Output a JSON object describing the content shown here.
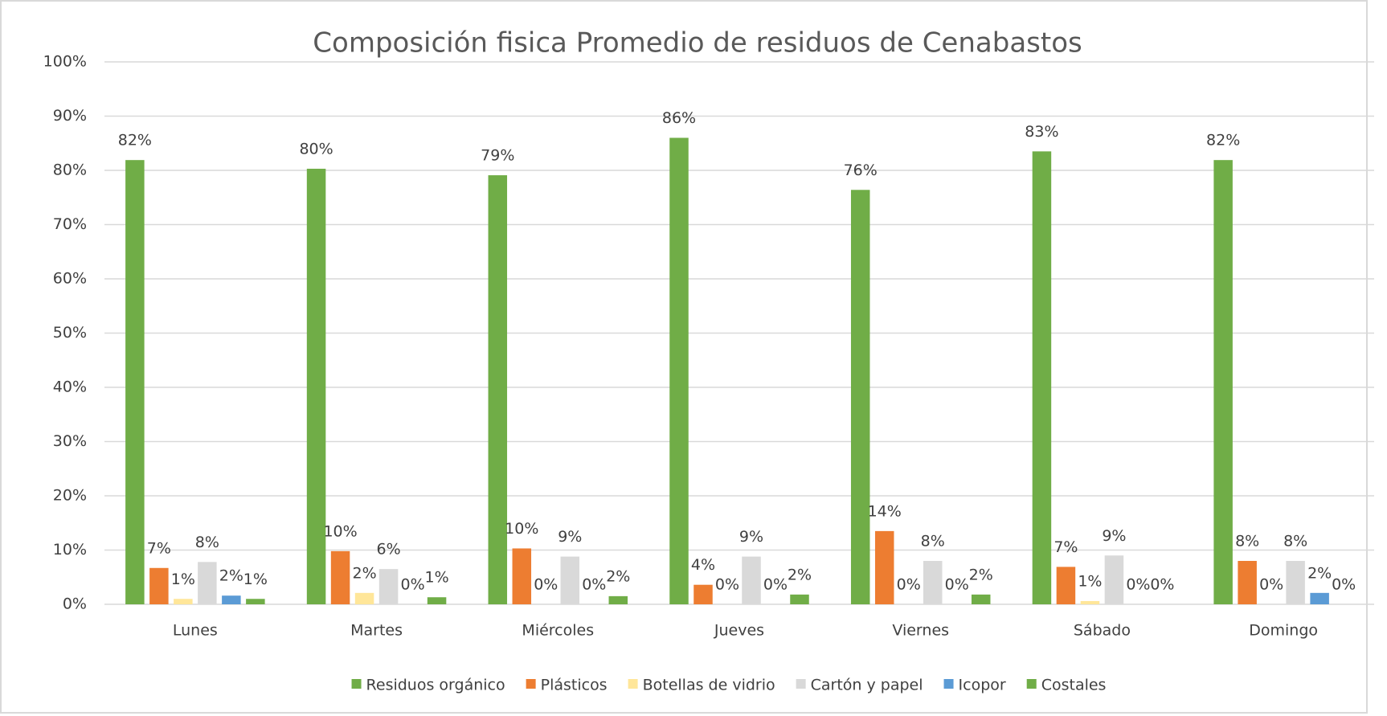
{
  "chart_data": {
    "type": "bar",
    "title": "Composición fisica Promedio de residuos de Cenabastos",
    "categories": [
      "Lunes",
      "Martes",
      "Miércoles",
      "Jueves",
      "Viernes",
      "Sábado",
      "Domingo"
    ],
    "series": [
      {
        "name": "Residuos orgánico",
        "color": "#70ad47",
        "values": [
          81.9,
          80.3,
          79.1,
          86,
          76.4,
          83.5,
          81.9
        ],
        "value_labels": [
          "82%",
          "80%",
          "79%",
          "86%",
          "76%",
          "83%",
          "82%"
        ]
      },
      {
        "name": "Plásticos",
        "color": "#ed7d31",
        "values": [
          6.7,
          9.8,
          10.3,
          3.6,
          13.5,
          6.9,
          8
        ],
        "value_labels": [
          "7%",
          "10%",
          "10%",
          "4%",
          "14%",
          "7%",
          "8%"
        ]
      },
      {
        "name": "Botellas de vidrio",
        "color": "#ffe699",
        "values": [
          1,
          2.1,
          0,
          0,
          0,
          0.6,
          0
        ],
        "value_labels": [
          "1%",
          "2%",
          "0%",
          "0%",
          "0%",
          "1%",
          "0%"
        ]
      },
      {
        "name": "Cartón y papel",
        "color": "#d9d9d9",
        "values": [
          7.8,
          6.5,
          8.8,
          8.8,
          8,
          9,
          8
        ],
        "value_labels": [
          "8%",
          "6%",
          "9%",
          "9%",
          "8%",
          "9%",
          "8%"
        ]
      },
      {
        "name": "Icopor",
        "color": "#5b9bd5",
        "values": [
          1.6,
          0,
          0,
          0,
          0,
          0,
          2.1
        ],
        "value_labels": [
          "2%",
          "0%",
          "0%",
          "0%",
          "0%",
          "0%",
          "2%"
        ]
      },
      {
        "name": "Costales",
        "color": "#70ad47",
        "values": [
          1,
          1.3,
          1.5,
          1.8,
          1.8,
          0,
          0
        ],
        "value_labels": [
          "1%",
          "1%",
          "2%",
          "2%",
          "2%",
          "0%",
          "0%"
        ]
      }
    ],
    "ylim": [
      0,
      100
    ],
    "yticks": [
      {
        "value": 0,
        "label": "0%"
      },
      {
        "value": 10,
        "label": "10%"
      },
      {
        "value": 20,
        "label": "20%"
      },
      {
        "value": 30,
        "label": "30%"
      },
      {
        "value": 40,
        "label": "40%"
      },
      {
        "value": 50,
        "label": "50%"
      },
      {
        "value": 60,
        "label": "60%"
      },
      {
        "value": 70,
        "label": "70%"
      },
      {
        "value": 80,
        "label": "80%"
      },
      {
        "value": 90,
        "label": "90%"
      },
      {
        "value": 100,
        "label": "100%"
      }
    ],
    "grid": true,
    "legend": "bottom"
  }
}
